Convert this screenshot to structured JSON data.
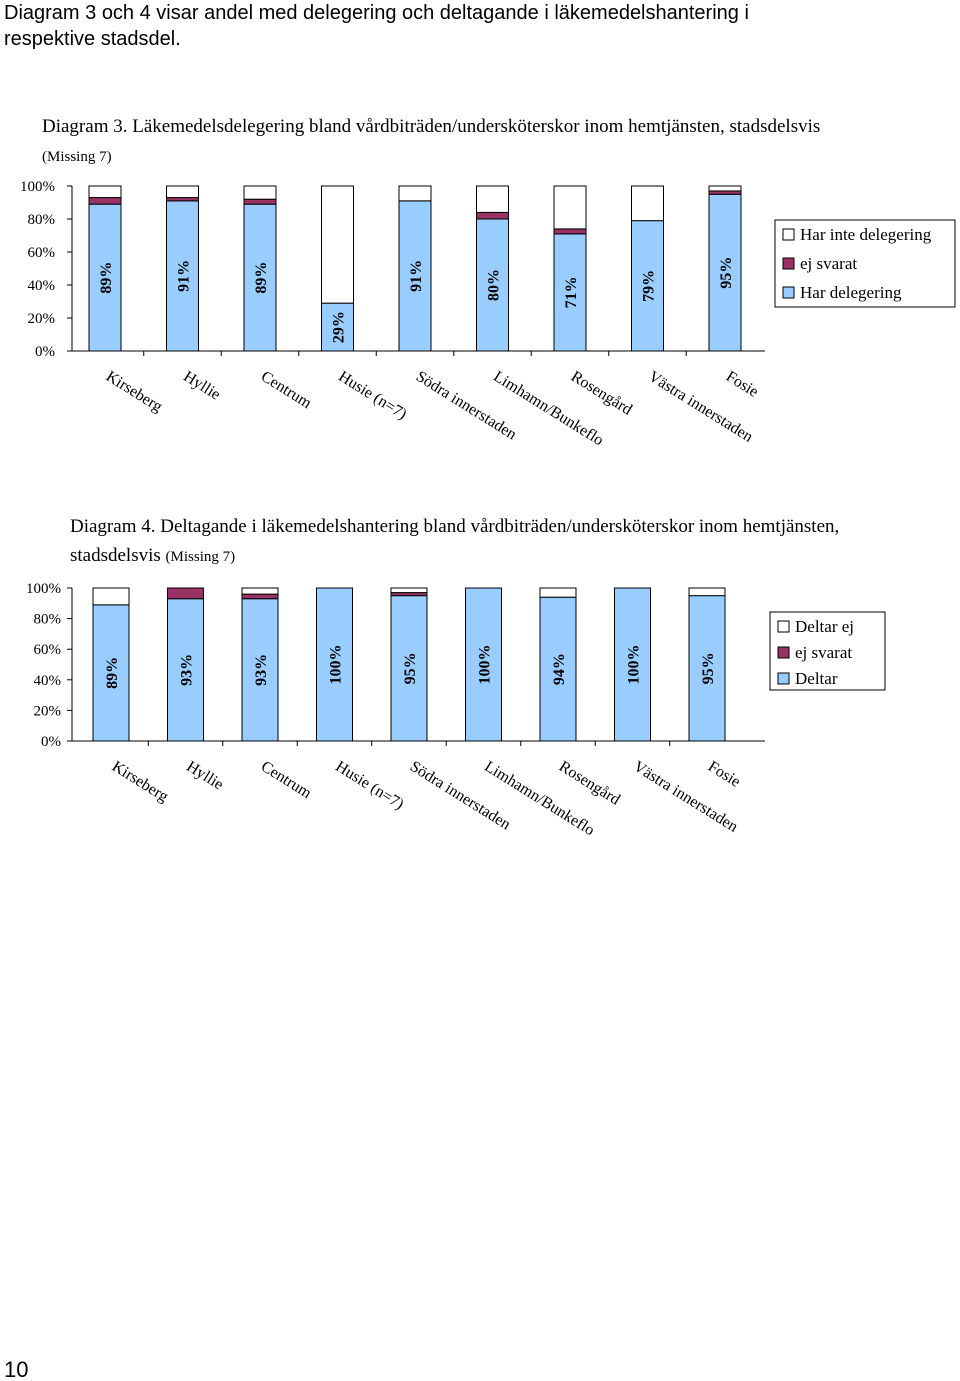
{
  "intro": "Diagram 3 och 4 visar andel med delegering och deltagande i läkemedelshantering i respektive stadsdel.",
  "chart_data": [
    {
      "type": "stacked-bar",
      "title": "Diagram 3. Läkemedelsdelegering bland vårdbiträden/undersköterskor inom hemtjänsten, stadsdelsvis",
      "note": "(Missing 7)",
      "categories": [
        "Kirseberg",
        "Hyllie",
        "Centrum",
        "Husie  (n=7)",
        "Södra innerstaden",
        "Limhamn/Bunkeflo",
        "Rosengård",
        "Västra innerstaden",
        "Fosie"
      ],
      "series": [
        {
          "name": "Har delegering",
          "color": "#99ccff",
          "values": [
            89,
            91,
            89,
            29,
            91,
            80,
            71,
            79,
            95
          ],
          "value_labels": [
            "89%",
            "91%",
            "89%",
            "29%",
            "91%",
            "80%",
            "71%",
            "79%",
            "95%"
          ]
        },
        {
          "name": "ej svarat",
          "color": "#993366",
          "values": [
            4,
            2,
            3,
            0,
            0,
            4,
            3,
            0,
            2
          ]
        },
        {
          "name": "Har inte delegering",
          "color": "#ffffff",
          "values": [
            7,
            7,
            8,
            71,
            9,
            16,
            26,
            21,
            3
          ]
        }
      ],
      "ylim": [
        0,
        100
      ],
      "yticks": [
        {
          "value": 0,
          "label": "0%"
        },
        {
          "value": 20,
          "label": "20%"
        },
        {
          "value": 40,
          "label": "40%"
        },
        {
          "value": 60,
          "label": "60%"
        },
        {
          "value": 80,
          "label": "80%"
        },
        {
          "value": 100,
          "label": "100%"
        }
      ],
      "legend": "right"
    },
    {
      "type": "stacked-bar",
      "title": "Diagram 4. Deltagande i läkemedelshantering bland vårdbiträden/undersköterskor inom hemtjänsten, stadsdelsvis",
      "note": "(Missing 7)",
      "categories": [
        "Kirseberg",
        "Hyllie",
        "Centrum",
        "Husie  (n=7)",
        "Södra innerstaden",
        "Limhamn/Bunkeflo",
        "Rosengård",
        "Västra innerstaden",
        "Fosie"
      ],
      "series": [
        {
          "name": "Deltar",
          "color": "#99ccff",
          "values": [
            89,
            93,
            93,
            100,
            95,
            100,
            94,
            100,
            95
          ],
          "value_labels": [
            "89%",
            "93%",
            "93%",
            "100%",
            "95%",
            "100%",
            "94%",
            "100%",
            "95%"
          ]
        },
        {
          "name": "ej svarat",
          "color": "#993366",
          "values": [
            0,
            7,
            3,
            0,
            2,
            0,
            0,
            0,
            0
          ]
        },
        {
          "name": "Deltar ej",
          "color": "#ffffff",
          "values": [
            11,
            0,
            4,
            0,
            3,
            0,
            6,
            0,
            5
          ]
        }
      ],
      "ylim": [
        0,
        100
      ],
      "yticks": [
        {
          "value": 0,
          "label": "0%"
        },
        {
          "value": 20,
          "label": "20%"
        },
        {
          "value": 40,
          "label": "40%"
        },
        {
          "value": 60,
          "label": "60%"
        },
        {
          "value": 80,
          "label": "80%"
        },
        {
          "value": 100,
          "label": "100%"
        }
      ],
      "legend": "right"
    }
  ],
  "page_number": "10"
}
